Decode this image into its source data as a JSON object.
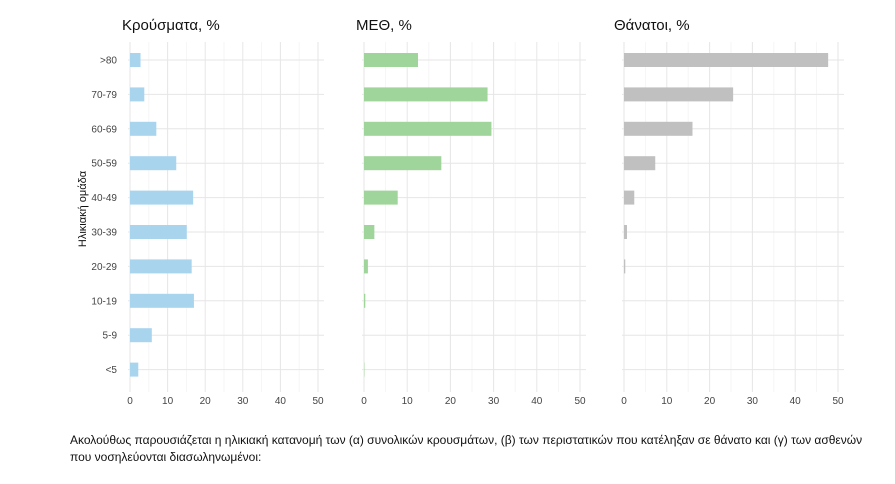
{
  "chart_data": [
    {
      "type": "bar",
      "orientation": "horizontal",
      "title": "Κρούσματα, %",
      "color": "#a8d4ee",
      "categories": [
        ">80",
        "70-79",
        "60-69",
        "50-59",
        "40-49",
        "30-39",
        "20-29",
        "10-19",
        "5-9",
        "<5"
      ],
      "values": [
        2.8,
        3.8,
        7.0,
        12.3,
        16.8,
        15.1,
        16.4,
        17.0,
        5.8,
        2.2
      ],
      "xlim": [
        0,
        50
      ],
      "xticks": [
        0,
        10,
        20,
        30,
        40,
        50
      ],
      "ylabel": "Ηλικιακή ομάδα"
    },
    {
      "type": "bar",
      "orientation": "horizontal",
      "title": "ΜΕΘ, %",
      "color": "#9fd49a",
      "categories": [
        ">80",
        "70-79",
        "60-69",
        "50-59",
        "40-49",
        "30-39",
        "20-29",
        "10-19",
        "5-9",
        "<5"
      ],
      "values": [
        12.5,
        28.6,
        29.5,
        17.9,
        7.8,
        2.4,
        0.9,
        0.3,
        0.0,
        0.1
      ],
      "xlim": [
        0,
        50
      ],
      "xticks": [
        0,
        10,
        20,
        30,
        40,
        50
      ]
    },
    {
      "type": "bar",
      "orientation": "horizontal",
      "title": "Θάνατοι, %",
      "color": "#c0c0c0",
      "categories": [
        ">80",
        "70-79",
        "60-69",
        "50-59",
        "40-49",
        "30-39",
        "20-29",
        "10-19",
        "5-9",
        "<5"
      ],
      "values": [
        47.7,
        25.5,
        16.0,
        7.3,
        2.4,
        0.7,
        0.3,
        0.0,
        0.0,
        0.0
      ],
      "xlim": [
        0,
        50
      ],
      "xticks": [
        0,
        10,
        20,
        30,
        40,
        50
      ]
    }
  ],
  "caption": "Ακολούθως παρουσιάζεται η ηλικιακή κατανομή των (α) συνολικών κρουσμάτων, (β) των περιστατικών που κατέληξαν σε θάνατο και (γ) των ασθενών που νοσηλεύονται διασωληνωμένοι:"
}
